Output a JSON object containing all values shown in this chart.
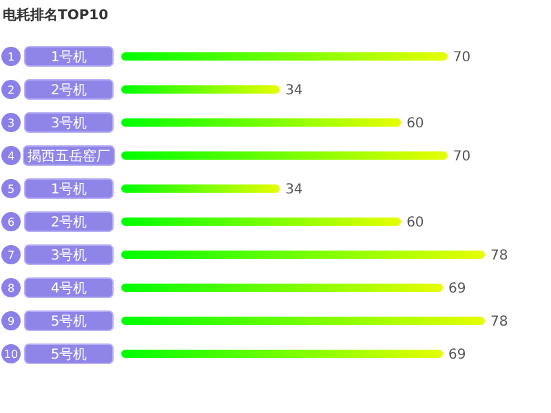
{
  "chart_data": {
    "type": "bar",
    "orientation": "horizontal",
    "title": "电耗排名TOP10",
    "categories": [
      "1号机",
      "2号机",
      "3号机",
      "揭西五岳窑厂",
      "1号机",
      "2号机",
      "3号机",
      "4号机",
      "5号机",
      "5号机"
    ],
    "values": [
      70,
      34,
      60,
      70,
      34,
      60,
      78,
      69,
      78,
      69
    ],
    "annotations": [
      "1",
      "2",
      "3",
      "4",
      "5",
      "6",
      "7",
      "8",
      "9",
      "10"
    ],
    "color": "#00ff00",
    "data_labels": true
  }
}
